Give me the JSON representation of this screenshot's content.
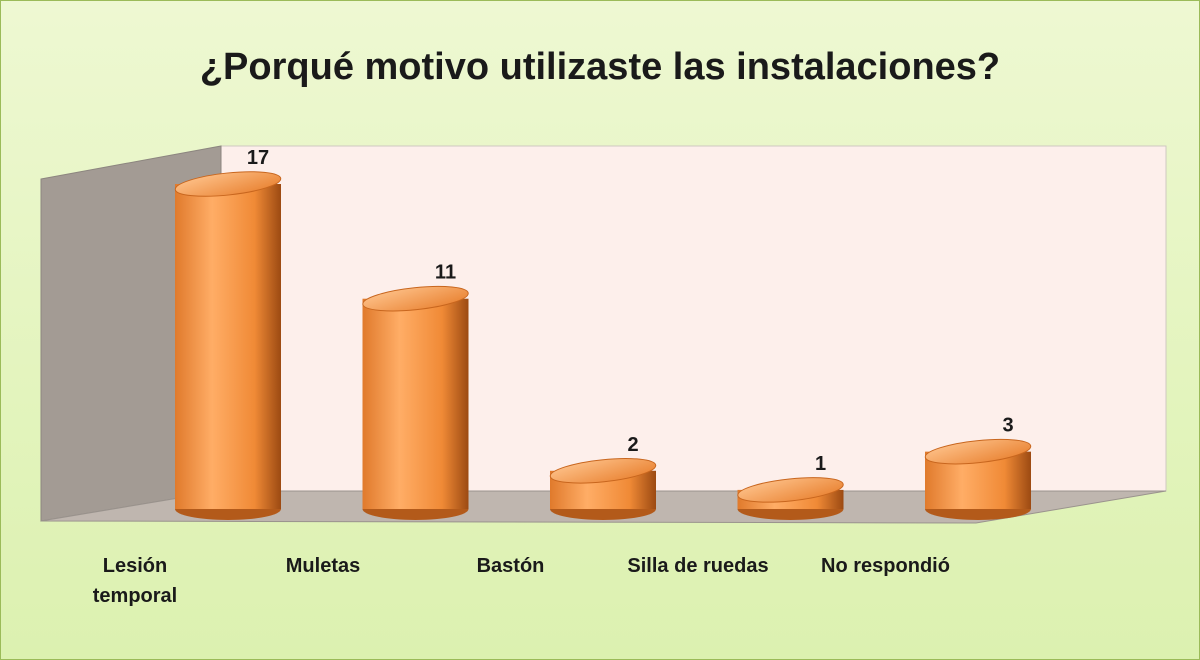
{
  "chart_data": {
    "type": "bar3d",
    "title": "¿Porqué motivo utilizaste las instalaciones?",
    "categories": [
      "Lesión temporal",
      "Muletas",
      "Bastón",
      "Silla de ruedas",
      "No respondió"
    ],
    "values": [
      17,
      11,
      2,
      1,
      3
    ],
    "color": "#f59a4a"
  }
}
